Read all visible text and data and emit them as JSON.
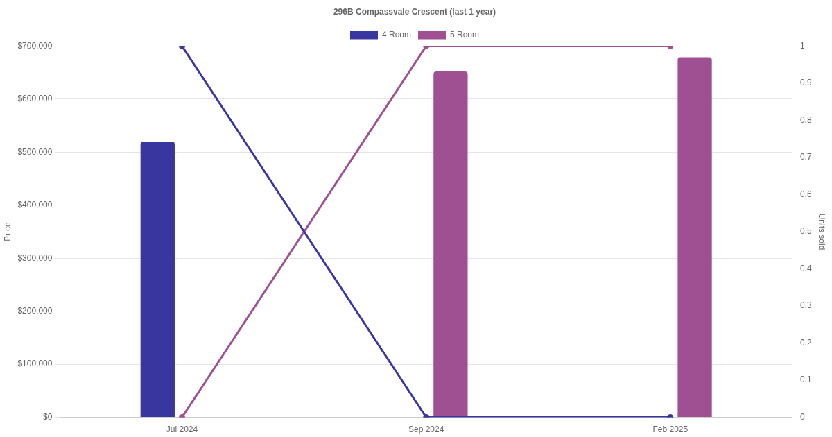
{
  "chart_data": {
    "type": "bar",
    "title": "296B Compassvale Crescent (last 1 year)",
    "ylabel": "Price",
    "y2label": "Units sold",
    "categories": [
      "Jul 2024",
      "Sep 2024",
      "Feb 2025"
    ],
    "series": [
      {
        "name": "4 Room",
        "color": "#3a36a0",
        "values": [
          520000,
          null,
          null
        ]
      },
      {
        "name": "5 Room",
        "color": "#9e5092",
        "values": [
          null,
          652000,
          679000
        ]
      },
      {
        "type": "line",
        "axis": "y2",
        "color": "#3a36a0",
        "values": [
          1,
          0,
          0
        ]
      },
      {
        "type": "line",
        "axis": "y2",
        "color": "#9e5092",
        "values": [
          0,
          1,
          1
        ]
      }
    ],
    "ylim": [
      0,
      700000
    ],
    "yticks": [
      {
        "value": 0,
        "label": "$0"
      },
      {
        "value": 100000,
        "label": "$100,000"
      },
      {
        "value": 200000,
        "label": "$200,000"
      },
      {
        "value": 300000,
        "label": "$300,000"
      },
      {
        "value": 400000,
        "label": "$400,000"
      },
      {
        "value": 500000,
        "label": "$500,000"
      },
      {
        "value": 600000,
        "label": "$600,000"
      },
      {
        "value": 700000,
        "label": "$700,000"
      }
    ],
    "y2lim": [
      0,
      1
    ],
    "y2ticks": [
      0,
      0.1,
      0.2,
      0.3,
      0.4,
      0.5,
      0.6,
      0.7,
      0.8,
      0.9,
      1
    ],
    "grid": "y",
    "legend": "top",
    "marker": "circle",
    "line_style": "solid"
  }
}
